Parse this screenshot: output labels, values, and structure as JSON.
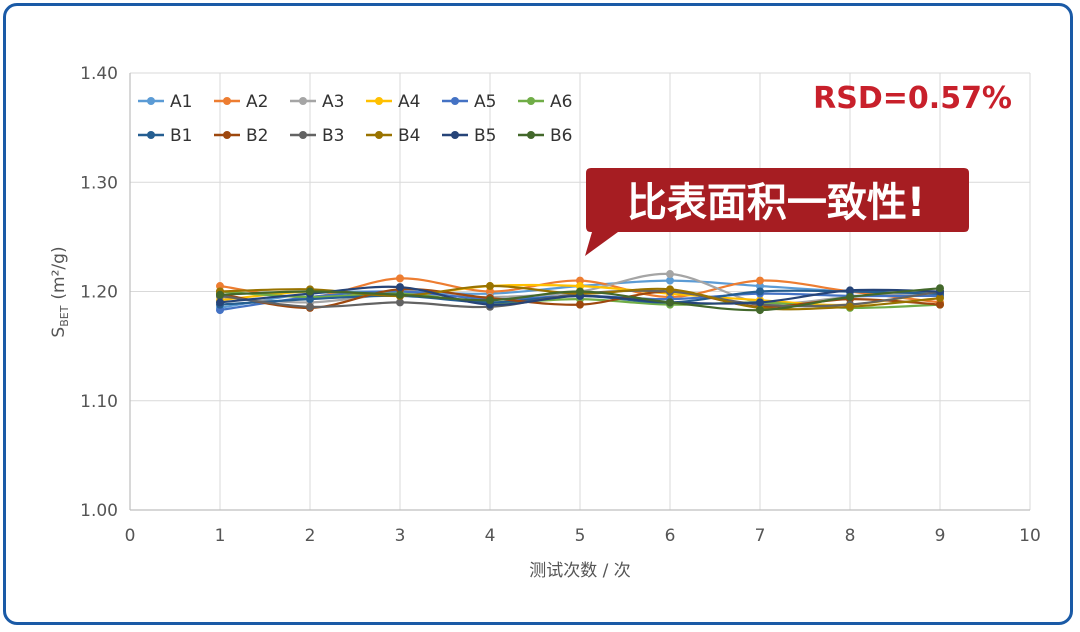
{
  "chart_data": {
    "type": "line",
    "xlabel": "测试次数 / 次",
    "ylabel_main": "S",
    "ylabel_sub": "BET",
    "ylabel_unit": "(m²/g)",
    "xlim": [
      0,
      10
    ],
    "ylim": [
      1.0,
      1.4
    ],
    "x_ticks": [
      "0",
      "1",
      "2",
      "3",
      "4",
      "5",
      "6",
      "7",
      "8",
      "9",
      "10"
    ],
    "y_ticks": [
      "1.00",
      "1.10",
      "1.20",
      "1.30",
      "1.40"
    ],
    "x": [
      1,
      2,
      3,
      4,
      5,
      6,
      7,
      8,
      9
    ],
    "grid": true,
    "legend_position": "top-left",
    "annotation_rsd": "RSD=0.57%",
    "annotation_callout": "比表面积一致性!",
    "series": [
      {
        "name": "A1",
        "color": "#5b9bd5",
        "values": [
          1.185,
          1.198,
          1.2,
          1.198,
          1.205,
          1.21,
          1.205,
          1.2,
          1.197
        ]
      },
      {
        "name": "A2",
        "color": "#ed7d31",
        "values": [
          1.205,
          1.195,
          1.212,
          1.2,
          1.21,
          1.195,
          1.21,
          1.2,
          1.19
        ]
      },
      {
        "name": "A3",
        "color": "#a5a5a5",
        "values": [
          1.195,
          1.19,
          1.198,
          1.195,
          1.2,
          1.216,
          1.19,
          1.195,
          1.2
        ]
      },
      {
        "name": "A4",
        "color": "#ffc000",
        "values": [
          1.192,
          1.2,
          1.196,
          1.205,
          1.205,
          1.198,
          1.192,
          1.188,
          1.2
        ]
      },
      {
        "name": "A5",
        "color": "#4472c4",
        "values": [
          1.183,
          1.195,
          1.2,
          1.193,
          1.196,
          1.193,
          1.198,
          1.196,
          1.196
        ]
      },
      {
        "name": "A6",
        "color": "#70ad47",
        "values": [
          1.2,
          1.195,
          1.198,
          1.19,
          1.193,
          1.188,
          1.19,
          1.185,
          1.188
        ]
      },
      {
        "name": "B1",
        "color": "#255e91",
        "values": [
          1.188,
          1.193,
          1.196,
          1.19,
          1.196,
          1.19,
          1.2,
          1.2,
          1.198
        ]
      },
      {
        "name": "B2",
        "color": "#9e480e",
        "values": [
          1.198,
          1.185,
          1.202,
          1.194,
          1.188,
          1.2,
          1.186,
          1.193,
          1.188
        ]
      },
      {
        "name": "B3",
        "color": "#636363",
        "values": [
          1.196,
          1.186,
          1.19,
          1.186,
          1.198,
          1.2,
          1.188,
          1.188,
          1.2
        ]
      },
      {
        "name": "B4",
        "color": "#997300",
        "values": [
          1.2,
          1.202,
          1.196,
          1.205,
          1.198,
          1.202,
          1.185,
          1.186,
          1.194
        ]
      },
      {
        "name": "B5",
        "color": "#264478",
        "values": [
          1.19,
          1.198,
          1.204,
          1.188,
          1.196,
          1.19,
          1.19,
          1.201,
          1.2
        ]
      },
      {
        "name": "B6",
        "color": "#43682b",
        "values": [
          1.197,
          1.2,
          1.197,
          1.192,
          1.2,
          1.19,
          1.183,
          1.195,
          1.203
        ]
      }
    ]
  }
}
